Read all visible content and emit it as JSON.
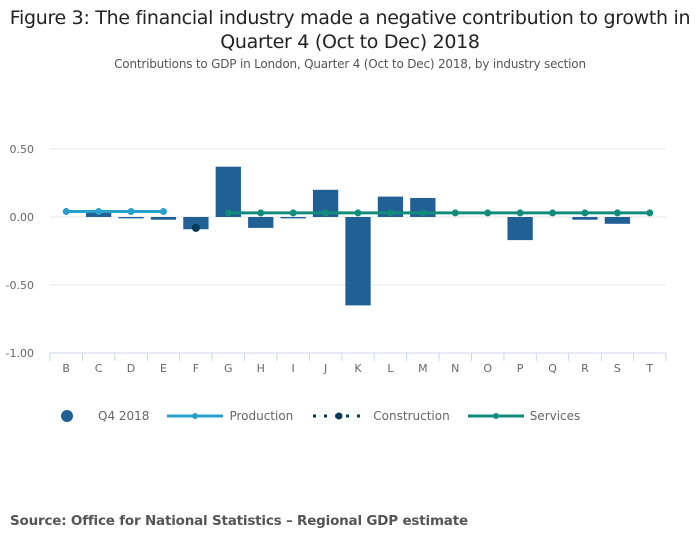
{
  "title": "Figure 3: The financial industry made a negative contribution to growth in Quarter 4 (Oct to Dec) 2018",
  "title_line1": "Figure 3: The financial industry made a negative contribution to growth in",
  "title_line2": "Quarter 4 (Oct to Dec) 2018",
  "subtitle": "Contributions to GDP in London, Quarter 4 (Oct to Dec) 2018, by industry section",
  "source": "Source: Office for National Statistics – Regional GDP estimate",
  "colors": {
    "bar": "#206095",
    "production": "#27a0cc",
    "construction": "#003c57",
    "services": "#118c7b",
    "grid": "#e4e4e4",
    "axis": "#ccd6eb"
  },
  "chart_data": {
    "type": "bar",
    "title": "Figure 3: The financial industry made a negative contribution to growth in Quarter 4 (Oct to Dec) 2018",
    "subtitle": "Contributions to GDP in London, Quarter 4 (Oct to Dec) 2018, by industry section",
    "xlabel": "",
    "ylabel": "",
    "categories": [
      "B",
      "C",
      "D",
      "E",
      "F",
      "G",
      "H",
      "I",
      "J",
      "K",
      "L",
      "M",
      "N",
      "O",
      "P",
      "Q",
      "R",
      "S",
      "T"
    ],
    "ylim": [
      -1.0,
      0.5
    ],
    "yticks": [
      0.5,
      0.0,
      -0.5,
      -1.0
    ],
    "ytick_labels": [
      "0.50",
      "0.00",
      "-0.50",
      "-1.00"
    ],
    "grid": true,
    "legend_position": "bottom",
    "series": [
      {
        "name": "Q4 2018",
        "type": "bar",
        "values": [
          0.0,
          0.03,
          -0.01,
          -0.02,
          -0.09,
          0.37,
          -0.08,
          -0.01,
          0.2,
          -0.65,
          0.15,
          0.14,
          0.0,
          0.0,
          -0.17,
          0.0,
          -0.02,
          -0.05,
          0.0
        ]
      },
      {
        "name": "Production",
        "type": "line",
        "categories": [
          "B",
          "C",
          "D",
          "E"
        ],
        "values": [
          0.04,
          0.04,
          0.04,
          0.04
        ]
      },
      {
        "name": "Construction",
        "type": "line-dotted",
        "categories": [
          "F"
        ],
        "values": [
          -0.08
        ]
      },
      {
        "name": "Services",
        "type": "line",
        "categories": [
          "G",
          "H",
          "I",
          "J",
          "K",
          "L",
          "M",
          "N",
          "O",
          "P",
          "Q",
          "R",
          "S",
          "T"
        ],
        "values": [
          0.03,
          0.03,
          0.03,
          0.03,
          0.03,
          0.03,
          0.03,
          0.03,
          0.03,
          0.03,
          0.03,
          0.03,
          0.03,
          0.03
        ]
      }
    ]
  },
  "legend": {
    "items": [
      {
        "label": "Q4 2018",
        "symbol": "circle-icon"
      },
      {
        "label": "Production",
        "symbol": "line-marker-icon"
      },
      {
        "label": "Construction",
        "symbol": "dotted-line-icon"
      },
      {
        "label": "Services",
        "symbol": "line-marker-icon"
      }
    ]
  }
}
